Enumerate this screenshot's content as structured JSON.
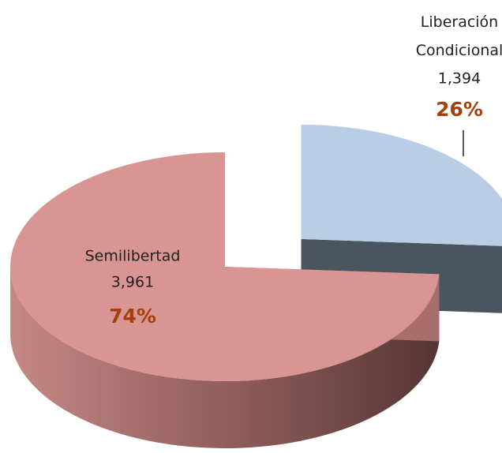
{
  "chart_data": {
    "type": "pie",
    "categories": [
      "Semilibertad",
      "Liberación Condicional"
    ],
    "values": [
      3961,
      1394
    ],
    "value_labels": [
      "3,961",
      "1,394"
    ],
    "percentages": [
      74,
      26
    ],
    "percentage_labels": [
      "74%",
      "26%"
    ],
    "colors": [
      "#d99594",
      "#b9cde4"
    ]
  }
}
